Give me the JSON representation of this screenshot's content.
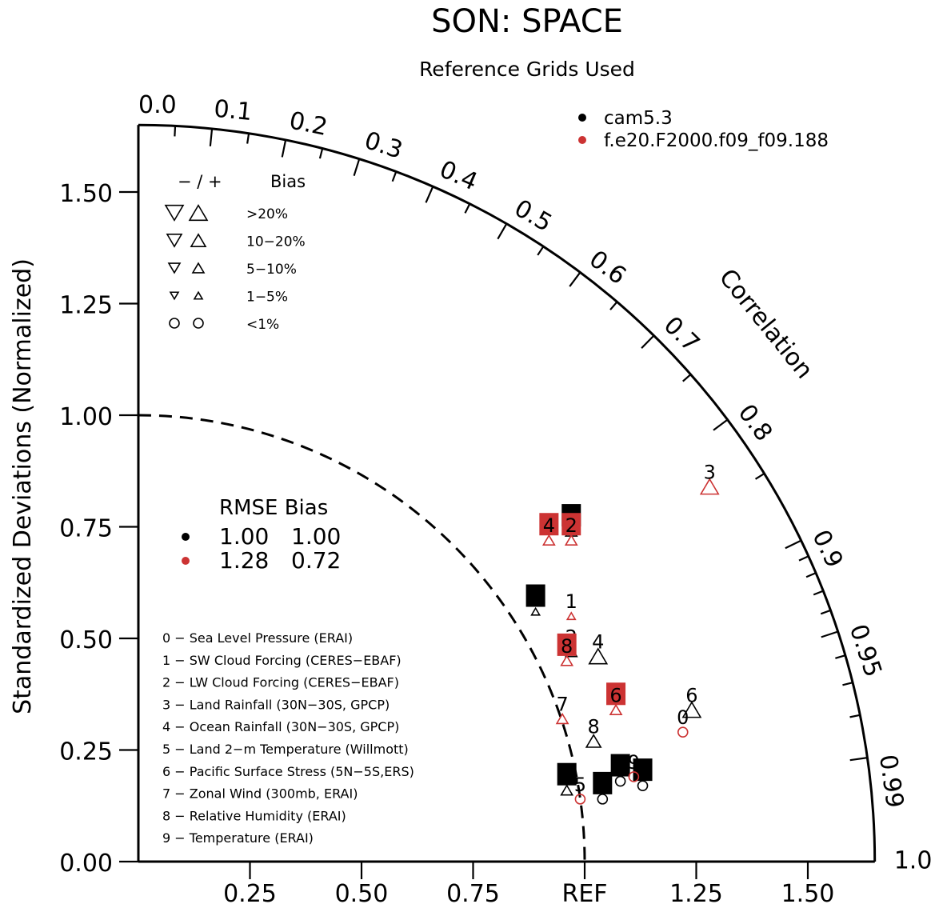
{
  "chart_data": {
    "type": "scatter",
    "title": "SON: SPACE",
    "subtitle": "Reference Grids Used",
    "ylabel": "Standardized Deviations (Normalized)",
    "arc_label": "Correlation",
    "ref_label": "REF",
    "xlim": [
      0,
      1.65
    ],
    "ylim": [
      0,
      1.65
    ],
    "x_ticks": [
      "0.25",
      "0.50",
      "0.75",
      "REF",
      "1.25",
      "1.50"
    ],
    "y_ticks": [
      "0.00",
      "0.25",
      "0.50",
      "0.75",
      "1.00",
      "1.25",
      "1.50"
    ],
    "corr_labels": [
      "0.0",
      "0.1",
      "0.2",
      "0.3",
      "0.4",
      "0.5",
      "0.6",
      "0.7",
      "0.8",
      "0.9",
      "0.95",
      "0.99",
      "1.0"
    ],
    "legend": [
      {
        "name": "cam5.3",
        "color": "#000000"
      },
      {
        "name": "f.e20.F2000.f09_f09.188",
        "color": "#cc3333"
      }
    ],
    "bias_key": {
      "header": [
        "− / +",
        "Bias"
      ],
      "rows": [
        ">20%",
        "10−20%",
        "5−10%",
        "1−5%",
        "<1%"
      ]
    },
    "rmse_table": {
      "header": "RMSE Bias",
      "rows": [
        {
          "rmse": "1.00",
          "bias": "1.00",
          "color": "#000000"
        },
        {
          "rmse": "1.28",
          "bias": "0.72",
          "color": "#cc3333"
        }
      ]
    },
    "variables": [
      "0 − Sea Level Pressure (ERAI)",
      "1 − SW Cloud Forcing (CERES−EBAF)",
      "2 − LW Cloud Forcing (CERES−EBAF)",
      "3 − Land Rainfall (30N−30S, GPCP)",
      "4 − Ocean Rainfall (30N−30S, GPCP)",
      "5 − Land 2−m Temperature (Willmott)",
      "6 − Pacific Surface Stress (5N−5S,ERS)",
      "7 − Zonal Wind (300mb, ERAI)",
      "8 − Relative Humidity (ERAI)",
      "9 − Temperature (ERAI)"
    ],
    "series": [
      {
        "name": "cam5.3",
        "color": "#000000",
        "points": [
          {
            "id": "0",
            "x": 1.08,
            "y": 0.18,
            "marker": "circle",
            "boxed": true
          },
          {
            "id": "1",
            "x": 0.89,
            "y": 0.56,
            "marker": "triangle-up-tiny",
            "boxed": true
          },
          {
            "id": "2",
            "x": 0.97,
            "y": 0.47,
            "marker": "triangle-up-small",
            "boxed": false
          },
          {
            "id": "3",
            "x": 0.97,
            "y": 0.74,
            "marker": "triangle-up-small",
            "boxed": true
          },
          {
            "id": "4",
            "x": 1.03,
            "y": 0.46,
            "marker": "triangle-up-large",
            "boxed": false
          },
          {
            "id": "5",
            "x": 1.04,
            "y": 0.14,
            "marker": "circle",
            "boxed": true
          },
          {
            "id": "6",
            "x": 1.24,
            "y": 0.34,
            "marker": "triangle-up-large",
            "boxed": false
          },
          {
            "id": "7",
            "x": 0.96,
            "y": 0.16,
            "marker": "triangle-up-small",
            "boxed": true
          },
          {
            "id": "8",
            "x": 1.02,
            "y": 0.27,
            "marker": "triangle-up-mid",
            "boxed": false
          },
          {
            "id": "9",
            "x": 1.13,
            "y": 0.17,
            "marker": "circle",
            "boxed": true
          }
        ]
      },
      {
        "name": "f.e20.F2000.f09_f09.188",
        "color": "#cc3333",
        "points": [
          {
            "id": "0",
            "x": 1.22,
            "y": 0.29,
            "marker": "circle",
            "boxed": false
          },
          {
            "id": "1",
            "x": 0.97,
            "y": 0.55,
            "marker": "triangle-up-tiny",
            "boxed": false
          },
          {
            "id": "2",
            "x": 0.97,
            "y": 0.72,
            "marker": "triangle-up-small",
            "boxed": true
          },
          {
            "id": "3",
            "x": 1.28,
            "y": 0.84,
            "marker": "triangle-up-large",
            "boxed": false
          },
          {
            "id": "4",
            "x": 0.92,
            "y": 0.72,
            "marker": "triangle-up-small",
            "boxed": true
          },
          {
            "id": "5",
            "x": 0.99,
            "y": 0.14,
            "marker": "circle",
            "boxed": false
          },
          {
            "id": "6",
            "x": 1.07,
            "y": 0.34,
            "marker": "triangle-up-small",
            "boxed": true
          },
          {
            "id": "7",
            "x": 0.95,
            "y": 0.32,
            "marker": "triangle-up-small",
            "boxed": false
          },
          {
            "id": "8",
            "x": 0.96,
            "y": 0.45,
            "marker": "triangle-up-small",
            "boxed": true
          },
          {
            "id": "9",
            "x": 1.11,
            "y": 0.19,
            "marker": "circle",
            "boxed": false
          }
        ]
      }
    ]
  }
}
